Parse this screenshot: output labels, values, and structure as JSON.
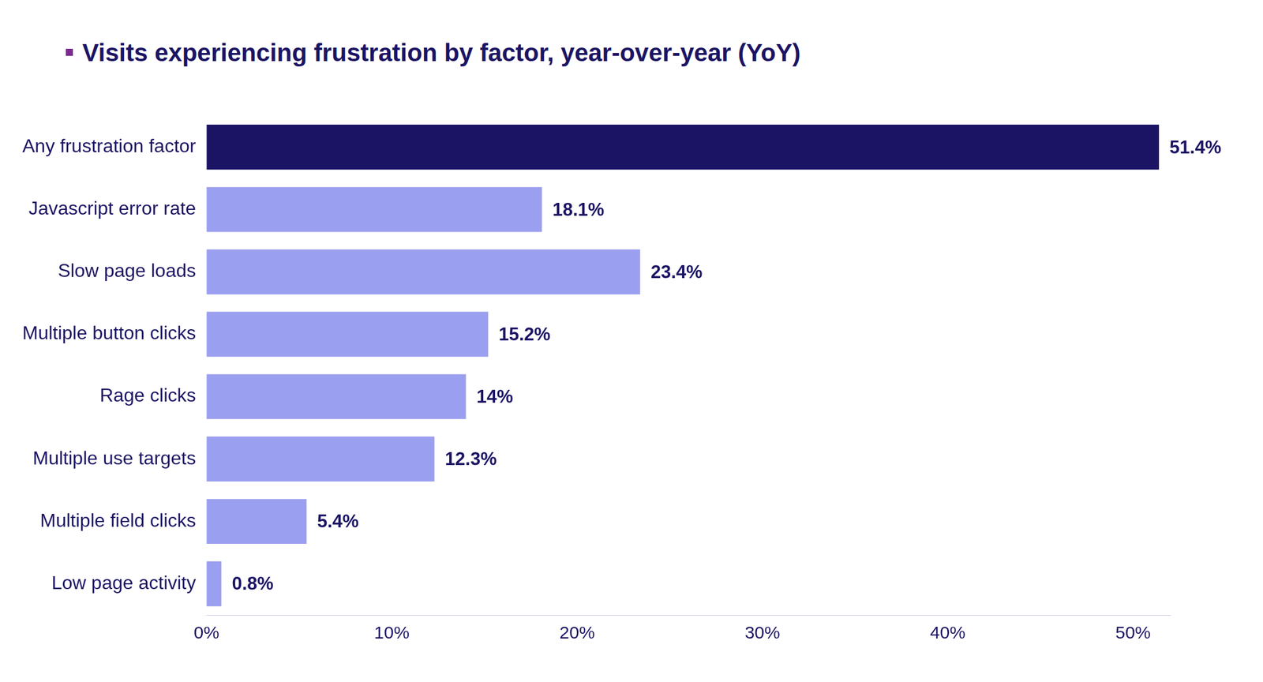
{
  "chart_data": {
    "type": "bar",
    "title": "Visits experiencing frustration by factor, year-over-year (YoY)",
    "orientation": "horizontal",
    "categories": [
      "Any frustration factor",
      "Javascript error rate",
      "Slow page loads",
      "Multiple button clicks",
      "Rage clicks",
      "Multiple use targets",
      "Multiple field clicks",
      "Low page activity"
    ],
    "values": [
      51.4,
      18.1,
      23.4,
      15.2,
      14,
      12.3,
      5.4,
      0.8
    ],
    "value_labels": [
      "51.4%",
      "18.1%",
      "23.4%",
      "15.2%",
      "14%",
      "12.3%",
      "5.4%",
      "0.8%"
    ],
    "colors": [
      "#1b1464",
      "#9b9fef",
      "#9b9fef",
      "#9b9fef",
      "#9b9fef",
      "#9b9fef",
      "#9b9fef",
      "#9b9fef"
    ],
    "xlim": [
      0,
      52
    ],
    "xticks": [
      {
        "value": 0,
        "label": "0%"
      },
      {
        "value": 10,
        "label": "10%"
      },
      {
        "value": 20,
        "label": "20%"
      },
      {
        "value": 30,
        "label": "30%"
      },
      {
        "value": 40,
        "label": "40%"
      },
      {
        "value": 50,
        "label": "50%"
      }
    ],
    "grid": false,
    "data_labels": true
  }
}
